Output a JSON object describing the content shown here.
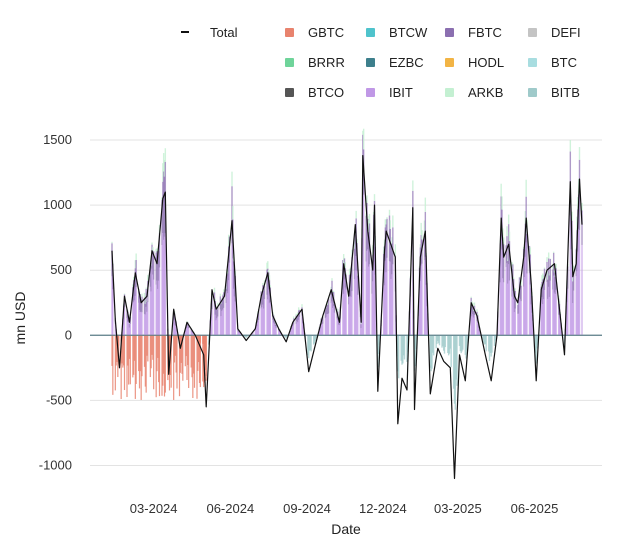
{
  "chart_data": {
    "type": "bar",
    "title": "",
    "xlabel": "Date",
    "ylabel": "mn USD",
    "ylim": [
      -1150,
      1500
    ],
    "yticks": [
      -1000,
      -500,
      0,
      500,
      1000,
      1500
    ],
    "xticks": [
      "03-2024",
      "06-2024",
      "09-2024",
      "12-2024",
      "03-2025",
      "06-2025"
    ],
    "x_range": [
      "2024-01-11",
      "2025-07-28"
    ],
    "grid": true,
    "legend_position": "top",
    "series": [
      {
        "name": "Total",
        "type": "line",
        "color": "#111111",
        "points": [
          [
            "2024-01-11",
            650
          ],
          [
            "2024-01-15",
            120
          ],
          [
            "2024-01-20",
            -250
          ],
          [
            "2024-01-26",
            300
          ],
          [
            "2024-02-01",
            100
          ],
          [
            "2024-02-08",
            480
          ],
          [
            "2024-02-15",
            250
          ],
          [
            "2024-02-22",
            300
          ],
          [
            "2024-02-28",
            650
          ],
          [
            "2024-03-05",
            550
          ],
          [
            "2024-03-12",
            1050
          ],
          [
            "2024-03-15",
            1100
          ],
          [
            "2024-03-19",
            -300
          ],
          [
            "2024-03-25",
            200
          ],
          [
            "2024-04-02",
            -100
          ],
          [
            "2024-04-10",
            100
          ],
          [
            "2024-04-20",
            0
          ],
          [
            "2024-04-30",
            -150
          ],
          [
            "2024-05-03",
            -550
          ],
          [
            "2024-05-10",
            350
          ],
          [
            "2024-05-15",
            200
          ],
          [
            "2024-05-25",
            300
          ],
          [
            "2024-06-03",
            880
          ],
          [
            "2024-06-10",
            50
          ],
          [
            "2024-06-20",
            -40
          ],
          [
            "2024-07-01",
            50
          ],
          [
            "2024-07-08",
            300
          ],
          [
            "2024-07-16",
            480
          ],
          [
            "2024-07-22",
            150
          ],
          [
            "2024-07-29",
            50
          ],
          [
            "2024-08-07",
            -50
          ],
          [
            "2024-08-15",
            100
          ],
          [
            "2024-08-26",
            200
          ],
          [
            "2024-09-03",
            -280
          ],
          [
            "2024-09-10",
            -100
          ],
          [
            "2024-09-20",
            150
          ],
          [
            "2024-09-30",
            350
          ],
          [
            "2024-10-10",
            100
          ],
          [
            "2024-10-15",
            550
          ],
          [
            "2024-10-21",
            300
          ],
          [
            "2024-10-29",
            850
          ],
          [
            "2024-11-05",
            100
          ],
          [
            "2024-11-07",
            1380
          ],
          [
            "2024-11-13",
            800
          ],
          [
            "2024-11-19",
            500
          ],
          [
            "2024-11-21",
            1000
          ],
          [
            "2024-11-25",
            -430
          ],
          [
            "2024-12-03",
            650
          ],
          [
            "2024-12-05",
            800
          ],
          [
            "2024-12-16",
            600
          ],
          [
            "2024-12-19",
            -680
          ],
          [
            "2024-12-24",
            -330
          ],
          [
            "2024-12-30",
            -420
          ],
          [
            "2025-01-06",
            980
          ],
          [
            "2025-01-08",
            -570
          ],
          [
            "2025-01-15",
            600
          ],
          [
            "2025-01-21",
            800
          ],
          [
            "2025-01-27",
            -450
          ],
          [
            "2025-02-05",
            -100
          ],
          [
            "2025-02-12",
            -200
          ],
          [
            "2025-02-20",
            -250
          ],
          [
            "2025-02-25",
            -1100
          ],
          [
            "2025-03-03",
            -150
          ],
          [
            "2025-03-10",
            -350
          ],
          [
            "2025-03-17",
            250
          ],
          [
            "2025-03-24",
            150
          ],
          [
            "2025-04-03",
            -150
          ],
          [
            "2025-04-10",
            -350
          ],
          [
            "2025-04-17",
            0
          ],
          [
            "2025-04-22",
            900
          ],
          [
            "2025-04-25",
            600
          ],
          [
            "2025-05-01",
            700
          ],
          [
            "2025-05-08",
            300
          ],
          [
            "2025-05-12",
            250
          ],
          [
            "2025-05-19",
            600
          ],
          [
            "2025-05-22",
            900
          ],
          [
            "2025-05-28",
            400
          ],
          [
            "2025-06-03",
            -350
          ],
          [
            "2025-06-09",
            350
          ],
          [
            "2025-06-16",
            500
          ],
          [
            "2025-06-25",
            550
          ],
          [
            "2025-07-01",
            200
          ],
          [
            "2025-07-07",
            -150
          ],
          [
            "2025-07-14",
            1180
          ],
          [
            "2025-07-17",
            450
          ],
          [
            "2025-07-21",
            550
          ],
          [
            "2025-07-25",
            1200
          ],
          [
            "2025-07-28",
            850
          ]
        ]
      },
      {
        "name": "GBTC",
        "color": "#e8836e"
      },
      {
        "name": "BTCW",
        "color": "#4fc3cc"
      },
      {
        "name": "FBTC",
        "color": "#8b6fb0"
      },
      {
        "name": "DEFI",
        "color": "#c4c4c4"
      },
      {
        "name": "BRRR",
        "color": "#6fd49a"
      },
      {
        "name": "EZBC",
        "color": "#3d7f8c"
      },
      {
        "name": "HODL",
        "color": "#f2b445"
      },
      {
        "name": "BTC",
        "color": "#a8dde0"
      },
      {
        "name": "BTCO",
        "color": "#555555"
      },
      {
        "name": "IBIT",
        "color": "#c098e6"
      },
      {
        "name": "ARKB",
        "color": "#c4f0d2"
      },
      {
        "name": "BITB",
        "color": "#9fcaca"
      }
    ]
  }
}
